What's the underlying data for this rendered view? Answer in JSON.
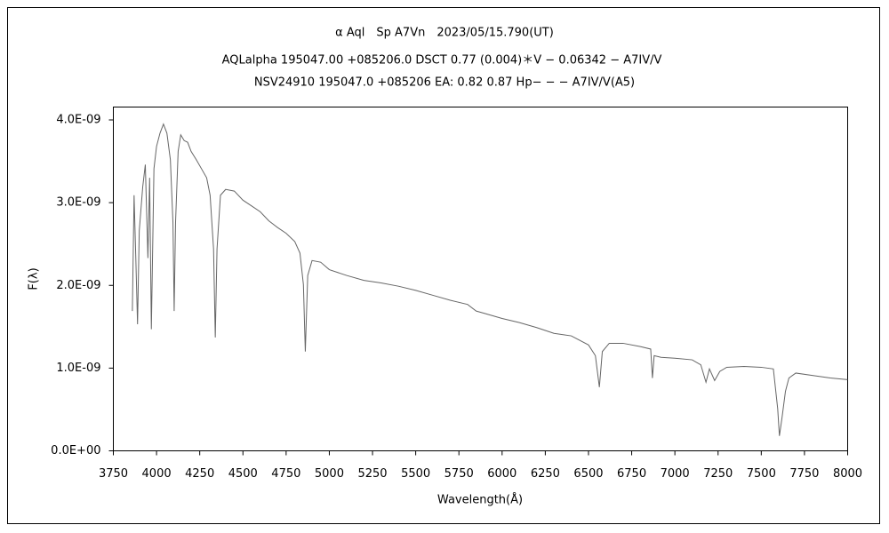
{
  "chart_data": {
    "type": "line",
    "title": "α Aql　Sp A7Vn　2023/05/15.790(UT)",
    "subtitles": [
      "AQLalpha 195047.00 +085206.0 DSCT 0.77 (0.004)＊V − 0.06342 − A7IV/V",
      "NSV24910 195047.0 +085206 EA: 0.82 0.87 Hp− − − A7IV/V(A5)"
    ],
    "x_label": "Wavelength(Å)",
    "y_label": "F(λ)",
    "color": "#666666",
    "x": [
      3860,
      3870,
      3880,
      3890,
      3900,
      3920,
      3935,
      3950,
      3960,
      3970,
      3985,
      4000,
      4020,
      4040,
      4060,
      4080,
      4095,
      4102,
      4110,
      4125,
      4140,
      4160,
      4180,
      4200,
      4230,
      4260,
      4290,
      4310,
      4330,
      4340,
      4350,
      4370,
      4400,
      4450,
      4500,
      4550,
      4600,
      4650,
      4700,
      4750,
      4800,
      4830,
      4850,
      4861,
      4875,
      4900,
      4950,
      5000,
      5100,
      5200,
      5300,
      5400,
      5500,
      5600,
      5700,
      5800,
      5850,
      5900,
      6000,
      6100,
      6200,
      6300,
      6400,
      6500,
      6540,
      6563,
      6580,
      6620,
      6700,
      6800,
      6860,
      6870,
      6880,
      6920,
      7000,
      7100,
      7150,
      7180,
      7200,
      7230,
      7260,
      7300,
      7400,
      7500,
      7570,
      7595,
      7605,
      7620,
      7640,
      7660,
      7700,
      7800,
      7900,
      8000
    ],
    "values": [
      1.69e-09,
      3.09e-09,
      2.33e-09,
      1.53e-09,
      2.66e-09,
      3.19e-09,
      3.46e-09,
      2.33e-09,
      3.3e-09,
      1.47e-09,
      3.41e-09,
      3.68e-09,
      3.84e-09,
      3.95e-09,
      3.84e-09,
      3.52e-09,
      2.76e-09,
      1.69e-09,
      2.76e-09,
      3.62e-09,
      3.82e-09,
      3.75e-09,
      3.73e-09,
      3.62e-09,
      3.52e-09,
      3.41e-09,
      3.3e-09,
      3.09e-09,
      2.44e-09,
      1.37e-09,
      2.44e-09,
      3.09e-09,
      3.16e-09,
      3.14e-09,
      3.03e-09,
      2.96e-09,
      2.89e-09,
      2.78e-09,
      2.7e-09,
      2.63e-09,
      2.53e-09,
      2.39e-09,
      2.01e-09,
      1.2e-09,
      2.12e-09,
      2.3e-09,
      2.28e-09,
      2.19e-09,
      2.12e-09,
      2.06e-09,
      2.03e-09,
      1.99e-09,
      1.94e-09,
      1.88e-09,
      1.82e-09,
      1.77e-09,
      1.69e-09,
      1.66e-09,
      1.6e-09,
      1.55e-09,
      1.49e-09,
      1.42e-09,
      1.39e-09,
      1.28e-09,
      1.15e-09,
      7.7e-10,
      1.2e-09,
      1.3e-09,
      1.3e-09,
      1.26e-09,
      1.23e-09,
      8.8e-10,
      1.15e-09,
      1.13e-09,
      1.12e-09,
      1.1e-09,
      1.04e-09,
      8.3e-10,
      9.9e-10,
      8.5e-10,
      9.6e-10,
      1.01e-09,
      1.02e-09,
      1.01e-09,
      9.9e-10,
      5.1e-10,
      1.8e-10,
      4e-10,
      7.2e-10,
      8.8e-10,
      9.4e-10,
      9.1e-10,
      8.8e-10,
      8.6e-10
    ],
    "xlim": [
      3750,
      8000
    ],
    "xticks": [
      3750,
      4000,
      4250,
      4500,
      4750,
      5000,
      5250,
      5500,
      5750,
      6000,
      6250,
      6500,
      6750,
      7000,
      7250,
      7500,
      7750,
      8000
    ],
    "ylim": [
      0,
      4e-09
    ],
    "yticks": [
      {
        "value": 0,
        "label": "0.0E+00"
      },
      {
        "value": 1e-09,
        "label": "1.0E-09"
      },
      {
        "value": 2e-09,
        "label": "2.0E-09"
      },
      {
        "value": 3e-09,
        "label": "3.0E-09"
      },
      {
        "value": 4e-09,
        "label": "4.0E-09"
      }
    ],
    "grid": false
  }
}
